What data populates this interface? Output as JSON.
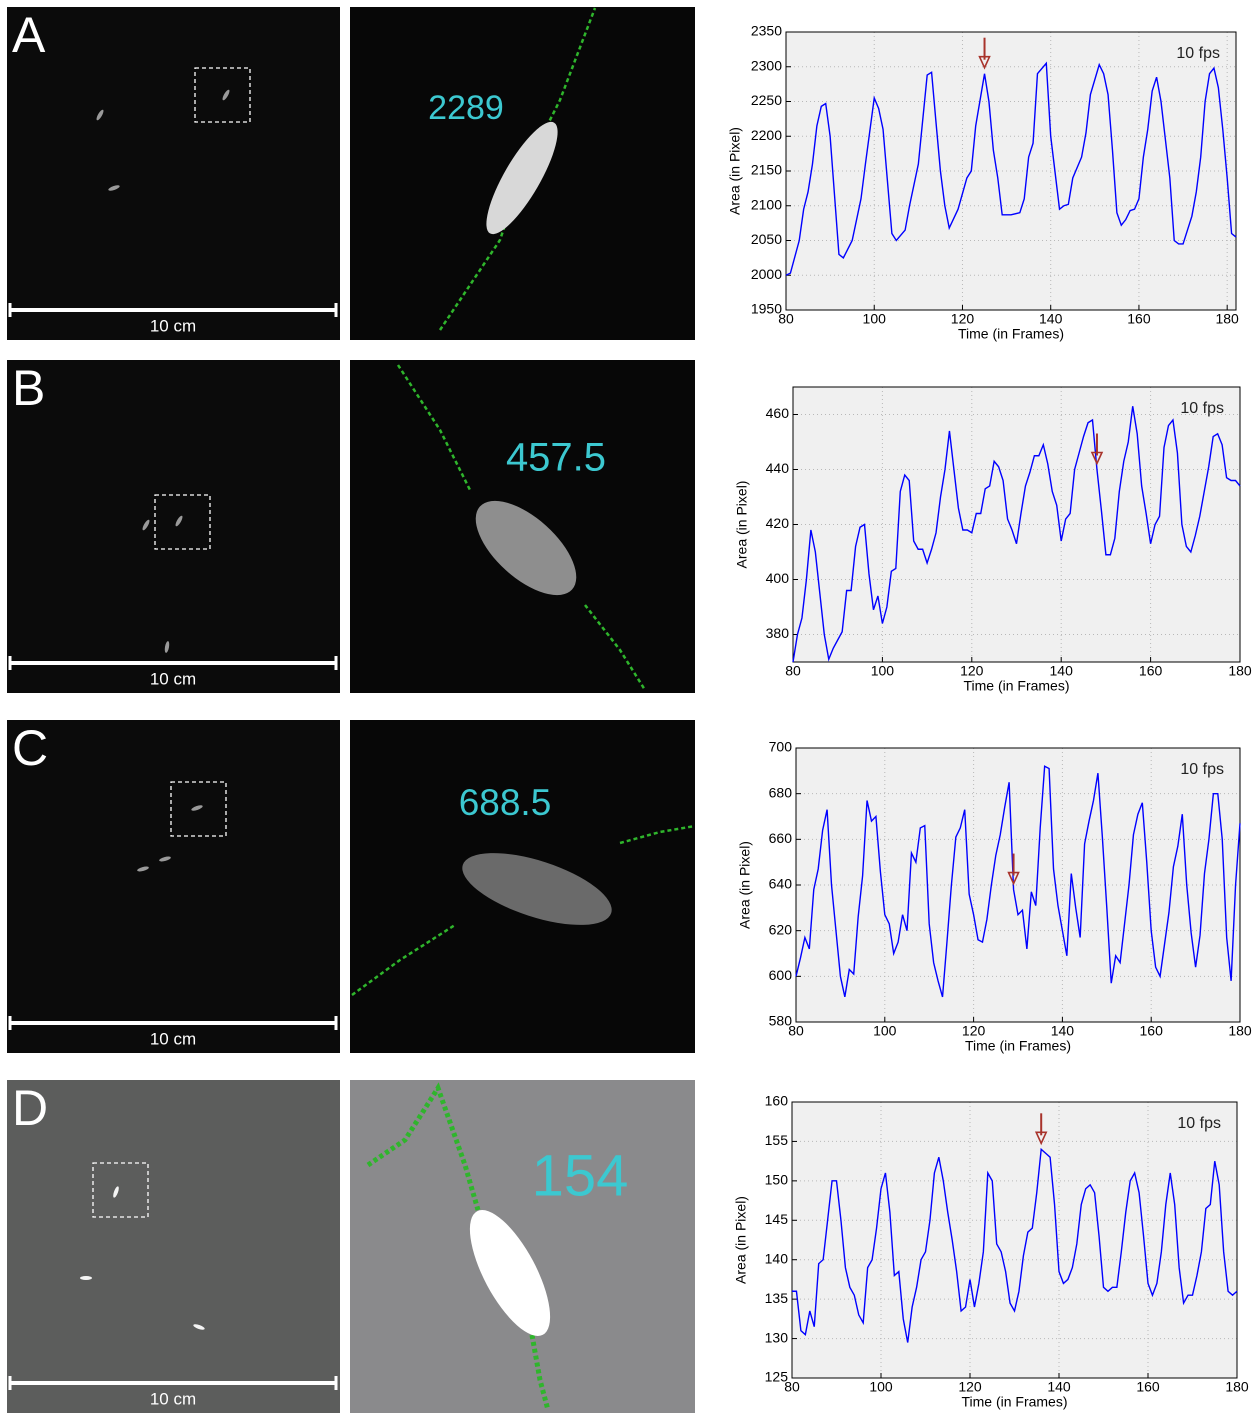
{
  "panels": [
    {
      "letter": "A",
      "scale_label": "10 cm",
      "zoom_label": "2289"
    },
    {
      "letter": "B",
      "scale_label": "10 cm",
      "zoom_label": "457.5"
    },
    {
      "letter": "C",
      "scale_label": "10 cm",
      "zoom_label": "688.5"
    },
    {
      "letter": "D",
      "scale_label": "10 cm",
      "zoom_label": "154"
    }
  ],
  "chart_data": [
    {
      "type": "line",
      "xlabel": "Time (in Frames)",
      "ylabel": "Area (in Pixel)",
      "annotation": "10 fps",
      "arrow_x": 125,
      "arrow_color": "#a8332b",
      "grid": true,
      "xlim": [
        80,
        182
      ],
      "ylim": [
        1950,
        2350
      ],
      "xticks": [
        80,
        100,
        120,
        140,
        160,
        180
      ],
      "yticks": [
        1950,
        2000,
        2050,
        2100,
        2150,
        2200,
        2250,
        2300,
        2350
      ],
      "x": [
        80,
        81,
        83,
        84,
        85,
        86,
        87,
        88,
        89,
        90,
        92,
        93,
        95,
        97,
        98,
        100,
        101,
        102,
        104,
        105,
        107,
        108,
        110,
        112,
        113,
        114,
        115,
        116,
        117,
        119,
        121,
        122,
        123,
        125,
        126,
        127,
        128,
        129,
        131,
        133,
        134,
        135,
        136,
        137,
        139,
        140,
        142,
        143,
        144,
        145,
        147,
        148,
        149,
        151,
        152,
        153,
        154,
        155,
        156,
        157,
        158,
        159,
        160,
        161,
        162,
        163,
        164,
        165,
        166,
        167,
        168,
        169,
        170,
        171,
        172,
        173,
        174,
        175,
        176,
        177,
        178,
        179,
        180,
        181,
        182
      ],
      "series": [
        {
          "color": "#0000ff",
          "values": [
            2000,
            2003,
            2050,
            2095,
            2120,
            2160,
            2215,
            2243,
            2247,
            2200,
            2030,
            2025,
            2050,
            2110,
            2160,
            2255,
            2240,
            2210,
            2060,
            2050,
            2065,
            2100,
            2160,
            2288,
            2292,
            2220,
            2150,
            2100,
            2068,
            2095,
            2140,
            2150,
            2215,
            2290,
            2250,
            2180,
            2140,
            2087,
            2087,
            2090,
            2110,
            2170,
            2190,
            2290,
            2305,
            2200,
            2095,
            2100,
            2102,
            2140,
            2170,
            2205,
            2260,
            2303,
            2290,
            2260,
            2180,
            2090,
            2072,
            2080,
            2093,
            2095,
            2110,
            2170,
            2210,
            2265,
            2285,
            2250,
            2195,
            2140,
            2050,
            2045,
            2045,
            2065,
            2085,
            2120,
            2170,
            2250,
            2290,
            2298,
            2270,
            2210,
            2140,
            2060,
            2055
          ]
        }
      ]
    },
    {
      "type": "line",
      "xlabel": "Time (in Frames)",
      "ylabel": "Area (in Pixel)",
      "annotation": "10 fps",
      "arrow_x": 148,
      "arrow_color": "#a8332b",
      "grid": true,
      "xlim": [
        80,
        180
      ],
      "ylim": [
        370,
        470
      ],
      "xticks": [
        80,
        100,
        120,
        140,
        160,
        180
      ],
      "yticks": [
        380,
        400,
        420,
        440,
        460
      ],
      "x": [
        80,
        81,
        82,
        83,
        84,
        85,
        86,
        87,
        88,
        89,
        90,
        91,
        92,
        93,
        94,
        95,
        96,
        97,
        98,
        99,
        100,
        101,
        102,
        103,
        104,
        105,
        106,
        107,
        108,
        109,
        110,
        111,
        112,
        113,
        114,
        115,
        116,
        117,
        118,
        119,
        120,
        121,
        122,
        123,
        124,
        125,
        126,
        127,
        128,
        129,
        130,
        131,
        132,
        133,
        134,
        135,
        136,
        137,
        138,
        139,
        140,
        141,
        142,
        143,
        144,
        145,
        146,
        147,
        148,
        149,
        150,
        151,
        152,
        153,
        154,
        155,
        156,
        157,
        158,
        159,
        160,
        161,
        162,
        163,
        164,
        165,
        166,
        167,
        168,
        169,
        170,
        171,
        172,
        173,
        174,
        175,
        176,
        177,
        178,
        179,
        180
      ],
      "series": [
        {
          "color": "#0000ff",
          "values": [
            370,
            380,
            386,
            400,
            418,
            410,
            395,
            380,
            371,
            375,
            378,
            381,
            396,
            396,
            412,
            419,
            420,
            402,
            389,
            394,
            384,
            390,
            403,
            404,
            432,
            438,
            436,
            414,
            411,
            411,
            406,
            411,
            417,
            430,
            440,
            454,
            440,
            426,
            418,
            418,
            417,
            424,
            424,
            433,
            434,
            443,
            441,
            436,
            422,
            418,
            413,
            424,
            434,
            439,
            445,
            445,
            449,
            442,
            432,
            427,
            414,
            422,
            424,
            440,
            446,
            452,
            457,
            458,
            440,
            425,
            409,
            409,
            415,
            432,
            443,
            450,
            463,
            453,
            434,
            424,
            413,
            420,
            423,
            448,
            456,
            458,
            446,
            420,
            412,
            410,
            416,
            423,
            432,
            441,
            452,
            453,
            449,
            437,
            436,
            436,
            434
          ]
        }
      ]
    },
    {
      "type": "line",
      "xlabel": "Time (in Frames)",
      "ylabel": "Area (in Pixel)",
      "annotation": "10 fps",
      "arrow_x": 129,
      "arrow_color": "#a8332b",
      "grid": true,
      "xlim": [
        80,
        180
      ],
      "ylim": [
        580,
        700
      ],
      "xticks": [
        80,
        100,
        120,
        140,
        160,
        180
      ],
      "yticks": [
        580,
        600,
        620,
        640,
        660,
        680,
        700
      ],
      "x": [
        80,
        81,
        82,
        83,
        84,
        85,
        86,
        87,
        88,
        89,
        90,
        91,
        92,
        93,
        94,
        95,
        96,
        97,
        98,
        99,
        100,
        101,
        102,
        103,
        104,
        105,
        106,
        107,
        108,
        109,
        110,
        111,
        112,
        113,
        114,
        115,
        116,
        117,
        118,
        119,
        120,
        121,
        122,
        123,
        124,
        125,
        126,
        127,
        128,
        129,
        130,
        131,
        132,
        133,
        134,
        135,
        136,
        137,
        138,
        139,
        140,
        141,
        142,
        143,
        144,
        145,
        146,
        147,
        148,
        149,
        150,
        151,
        152,
        153,
        154,
        155,
        156,
        157,
        158,
        159,
        160,
        161,
        162,
        163,
        164,
        165,
        166,
        167,
        168,
        169,
        170,
        171,
        172,
        173,
        174,
        175,
        176,
        177,
        178,
        179,
        180
      ],
      "series": [
        {
          "color": "#0000ff",
          "values": [
            600,
            608,
            617,
            612,
            638,
            647,
            664,
            673,
            640,
            620,
            600,
            591,
            603,
            601,
            626,
            644,
            677,
            668,
            670,
            646,
            627,
            623,
            610,
            615,
            627,
            620,
            654,
            650,
            665,
            666,
            623,
            606,
            598,
            591,
            615,
            640,
            661,
            665,
            673,
            636,
            627,
            616,
            615,
            625,
            640,
            653,
            662,
            674,
            685,
            638,
            627,
            629,
            612,
            637,
            631,
            665,
            692,
            691,
            647,
            631,
            620,
            609,
            645,
            630,
            617,
            658,
            668,
            677,
            689,
            661,
            630,
            597,
            609,
            606,
            623,
            640,
            662,
            671,
            676,
            650,
            620,
            604,
            600,
            614,
            628,
            648,
            657,
            671,
            640,
            619,
            604,
            618,
            645,
            660,
            680,
            680,
            660,
            617,
            598,
            640,
            667
          ]
        }
      ]
    },
    {
      "type": "line",
      "xlabel": "Time (in Frames)",
      "ylabel": "Area (in Pixel)",
      "annotation": "10 fps",
      "arrow_x": 136,
      "arrow_color": "#a8332b",
      "grid": true,
      "xlim": [
        80,
        180
      ],
      "ylim": [
        125,
        160
      ],
      "xticks": [
        80,
        100,
        120,
        140,
        160,
        180
      ],
      "yticks": [
        125,
        130,
        135,
        140,
        145,
        150,
        155,
        160
      ],
      "x": [
        80,
        81,
        82,
        83,
        84,
        85,
        86,
        87,
        88,
        89,
        90,
        91,
        92,
        93,
        94,
        95,
        96,
        97,
        98,
        99,
        100,
        101,
        102,
        103,
        104,
        105,
        106,
        107,
        108,
        109,
        110,
        111,
        112,
        113,
        114,
        115,
        116,
        117,
        118,
        119,
        120,
        121,
        122,
        123,
        124,
        125,
        126,
        127,
        128,
        129,
        130,
        131,
        132,
        133,
        134,
        135,
        136,
        137,
        138,
        139,
        140,
        141,
        142,
        143,
        144,
        145,
        146,
        147,
        148,
        149,
        150,
        151,
        152,
        153,
        154,
        155,
        156,
        157,
        158,
        159,
        160,
        161,
        162,
        163,
        164,
        165,
        166,
        167,
        168,
        169,
        170,
        171,
        172,
        173,
        174,
        175,
        176,
        177,
        178,
        179,
        180
      ],
      "series": [
        {
          "color": "#0000ff",
          "values": [
            136,
            136,
            131,
            130.5,
            133.5,
            131.5,
            139.5,
            140,
            145,
            150,
            150,
            145,
            139,
            136.5,
            135.5,
            133,
            132,
            139,
            140,
            144,
            149,
            151,
            146,
            138,
            138.5,
            132.5,
            129.5,
            134,
            136.5,
            140,
            141,
            145,
            151,
            153,
            150,
            146,
            142.5,
            138.5,
            133.5,
            134,
            137.5,
            134,
            137,
            141,
            151,
            150,
            142,
            141,
            138.5,
            134.5,
            133.5,
            136,
            140.5,
            143.5,
            144,
            148.5,
            154,
            153.5,
            153,
            147,
            138.5,
            137,
            137.5,
            139,
            142,
            147,
            149,
            149.5,
            148.5,
            143,
            136.5,
            136,
            136.5,
            136.5,
            141,
            146,
            150,
            151,
            148.5,
            143,
            137,
            135.5,
            137,
            141,
            147,
            151,
            147,
            139,
            134.5,
            135.5,
            135.5,
            138,
            141,
            146.5,
            147,
            152.5,
            149.5,
            141,
            136,
            135.5,
            136
          ]
        }
      ]
    }
  ]
}
